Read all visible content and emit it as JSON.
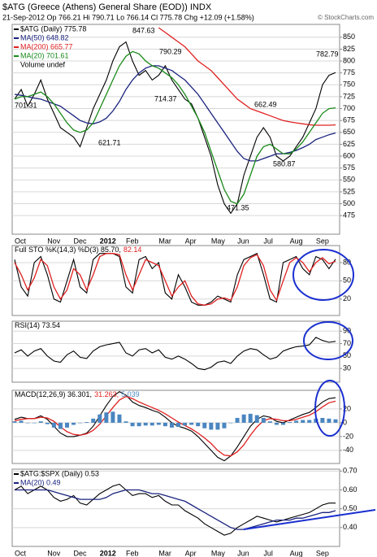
{
  "header": {
    "title": "$ATG (Greece (Athens) General Share (EOD)) INDX",
    "quote": "21-Sep-2012   Op 766.21   Hi 790.71   Lo 766.14   Cl 775.78   Chg +12.09 (+1.58%)",
    "copyright": "© StockCharts.com"
  },
  "chart_data": [
    {
      "type": "line",
      "grid": true,
      "ylim": [
        436,
        877
      ],
      "yticks": [
        475,
        500,
        525,
        550,
        575,
        600,
        625,
        650,
        675,
        700,
        725,
        750,
        775,
        800,
        825,
        850
      ],
      "categories": [
        "Oct",
        null,
        null,
        null,
        null,
        "Nov",
        null,
        null,
        null,
        "Dec",
        null,
        null,
        null,
        "2012",
        null,
        null,
        null,
        "Feb",
        null,
        null,
        null,
        null,
        "Mar",
        null,
        null,
        null,
        "Apr",
        null,
        null,
        null,
        "May",
        null,
        null,
        null,
        "Jun",
        null,
        null,
        null,
        "Jul",
        null,
        null,
        null,
        "Aug",
        null,
        null,
        null,
        "Sep",
        null,
        null,
        null
      ],
      "series": [
        {
          "name": "$ATG (Daily) 775.78",
          "color": "#000000",
          "values": [
            720,
            740,
            705,
            730,
            760,
            720,
            690,
            660,
            650,
            640,
            620,
            660,
            700,
            730,
            760,
            800,
            830,
            840,
            800,
            770,
            780,
            760,
            770,
            790,
            760,
            740,
            720,
            710,
            680,
            640,
            600,
            540,
            500,
            480,
            500,
            560,
            600,
            640,
            660,
            640,
            600,
            590,
            600,
            620,
            640,
            670,
            700,
            750,
            770,
            775.78
          ]
        },
        {
          "name": "MA(50) 648.82",
          "color": "#1a237e",
          "values": [
            730,
            728,
            725,
            722,
            720,
            715,
            710,
            705,
            695,
            685,
            675,
            670,
            668,
            672,
            680,
            695,
            715,
            740,
            760,
            775,
            785,
            790,
            790,
            785,
            780,
            770,
            760,
            745,
            730,
            710,
            690,
            670,
            650,
            630,
            610,
            595,
            590,
            590,
            595,
            600,
            605,
            605,
            608,
            612,
            618,
            625,
            635,
            640,
            645,
            648.82
          ]
        },
        {
          "name": "MA(200) 665.77",
          "color": "#e02020",
          "values": [
            null,
            null,
            null,
            null,
            null,
            null,
            null,
            null,
            null,
            null,
            null,
            null,
            null,
            null,
            null,
            null,
            null,
            null,
            null,
            null,
            null,
            null,
            870,
            860,
            850,
            840,
            830,
            815,
            800,
            790,
            780,
            765,
            750,
            735,
            720,
            710,
            700,
            695,
            690,
            685,
            680,
            675,
            672,
            670,
            668,
            666,
            665,
            665,
            665,
            665.77
          ]
        },
        {
          "name": "MA(20) 701.61",
          "color": "#1a8a1a",
          "values": [
            720,
            725,
            725,
            730,
            735,
            725,
            710,
            690,
            670,
            655,
            650,
            655,
            670,
            700,
            730,
            760,
            790,
            810,
            820,
            815,
            800,
            790,
            785,
            775,
            765,
            750,
            730,
            705,
            680,
            650,
            610,
            570,
            530,
            505,
            500,
            520,
            560,
            600,
            620,
            625,
            615,
            605,
            605,
            615,
            630,
            650,
            670,
            690,
            700,
            701.61
          ]
        }
      ],
      "volume_label": "Volume undef",
      "annotations": [
        847.63,
        790.29,
        714.37,
        701.31,
        621.71,
        471.35,
        662.49,
        580.87,
        782.79
      ]
    },
    {
      "type": "line",
      "grid": true,
      "ylim": [
        -7,
        108
      ],
      "yticks": [
        20,
        50,
        80
      ],
      "series": [
        {
          "name": "Full STO %K(14,3) %D(3) 85.70,",
          "color": "#000000",
          "values": [
            85,
            40,
            25,
            80,
            90,
            60,
            20,
            15,
            50,
            85,
            40,
            30,
            85,
            95,
            95,
            95,
            90,
            40,
            30,
            85,
            90,
            70,
            80,
            30,
            20,
            60,
            40,
            15,
            10,
            10,
            15,
            25,
            20,
            15,
            60,
            85,
            90,
            95,
            60,
            20,
            15,
            80,
            85,
            90,
            70,
            60,
            90,
            85,
            70,
            85.7
          ]
        },
        {
          "name": "82.14",
          "color": "#e02020",
          "values": [
            80,
            60,
            35,
            55,
            85,
            75,
            40,
            20,
            35,
            70,
            60,
            35,
            60,
            90,
            95,
            95,
            93,
            60,
            35,
            60,
            85,
            80,
            75,
            50,
            25,
            40,
            50,
            25,
            12,
            10,
            12,
            20,
            22,
            18,
            40,
            75,
            88,
            93,
            75,
            35,
            18,
            50,
            80,
            88,
            80,
            65,
            80,
            88,
            78,
            82.14
          ]
        }
      ]
    },
    {
      "type": "line",
      "grid": true,
      "ylim": [
        8,
        106
      ],
      "yticks": [
        30,
        50,
        70,
        90
      ],
      "series": [
        {
          "name": "RSI(14) 73.54",
          "color": "#000000",
          "values": [
            55,
            60,
            50,
            58,
            62,
            50,
            42,
            40,
            52,
            58,
            48,
            46,
            58,
            65,
            68,
            70,
            72,
            55,
            50,
            60,
            62,
            55,
            60,
            48,
            45,
            50,
            45,
            38,
            30,
            28,
            32,
            40,
            42,
            38,
            50,
            58,
            62,
            60,
            52,
            45,
            48,
            58,
            62,
            65,
            66,
            68,
            80,
            75,
            72,
            73.54
          ]
        }
      ]
    },
    {
      "type": "line",
      "grid": true,
      "ylim": [
        -59,
        47
      ],
      "yticks": [
        -40,
        -20,
        0,
        20
      ],
      "series": [
        {
          "name": "MACD(12,26,9) 36.301,",
          "color": "#000000",
          "values": [
            5,
            8,
            6,
            6,
            10,
            5,
            -5,
            -15,
            -20,
            -20,
            -18,
            -15,
            -5,
            10,
            25,
            38,
            45,
            40,
            30,
            25,
            22,
            18,
            15,
            8,
            0,
            -5,
            -8,
            -12,
            -20,
            -30,
            -40,
            -50,
            -55,
            -48,
            -35,
            -20,
            -5,
            5,
            10,
            8,
            2,
            0,
            4,
            8,
            12,
            15,
            22,
            30,
            35,
            36.301
          ]
        },
        {
          "name": "31.263,",
          "color": "#e02020",
          "values": [
            3,
            5,
            6,
            6,
            8,
            7,
            2,
            -6,
            -13,
            -17,
            -18,
            -16,
            -11,
            -2,
            10,
            22,
            33,
            38,
            35,
            30,
            26,
            22,
            18,
            13,
            7,
            1,
            -4,
            -9,
            -15,
            -22,
            -30,
            -40,
            -47,
            -48,
            -42,
            -32,
            -18,
            -6,
            3,
            6,
            5,
            3,
            3,
            5,
            8,
            11,
            16,
            23,
            29,
            31.263
          ]
        },
        {
          "name": "5.039",
          "color": "#4a86c0",
          "type": "bar",
          "values": [
            2,
            3,
            0,
            0,
            2,
            -2,
            -7,
            -9,
            -7,
            -3,
            0,
            1,
            6,
            12,
            15,
            16,
            12,
            2,
            -5,
            -5,
            -4,
            -4,
            -3,
            -5,
            -7,
            -6,
            -4,
            -3,
            -5,
            -8,
            -10,
            -10,
            -8,
            0,
            7,
            12,
            13,
            11,
            7,
            2,
            -3,
            -3,
            1,
            3,
            4,
            4,
            6,
            7,
            6,
            5.039
          ]
        }
      ]
    },
    {
      "type": "line",
      "grid": true,
      "ylim": [
        0.3,
        0.71
      ],
      "yticks": [
        {
          "value": 0.4,
          "label": "0.40"
        },
        {
          "value": 0.5,
          "label": "0.50"
        },
        {
          "value": 0.6,
          "label": "0.60"
        },
        {
          "value": 0.7,
          "label": "0.70"
        }
      ],
      "categories": [
        "Oct",
        null,
        null,
        null,
        null,
        "Nov",
        null,
        null,
        null,
        "Dec",
        null,
        null,
        null,
        "2012",
        null,
        null,
        null,
        "Feb",
        null,
        null,
        null,
        null,
        "Mar",
        null,
        null,
        null,
        "Apr",
        null,
        null,
        null,
        "May",
        null,
        null,
        null,
        "Jun",
        null,
        null,
        null,
        "Jul",
        null,
        null,
        null,
        "Aug",
        null,
        null,
        null,
        "Sep",
        null,
        null,
        null
      ],
      "series": [
        {
          "name": "$ATG:$SPX (Daily) 0.53",
          "color": "#000000",
          "values": [
            0.6,
            0.62,
            0.58,
            0.6,
            0.62,
            0.6,
            0.56,
            0.54,
            0.55,
            0.57,
            0.53,
            0.52,
            0.55,
            0.58,
            0.6,
            0.62,
            0.63,
            0.6,
            0.57,
            0.58,
            0.58,
            0.56,
            0.57,
            0.54,
            0.52,
            0.52,
            0.49,
            0.47,
            0.45,
            0.42,
            0.4,
            0.38,
            0.36,
            0.37,
            0.4,
            0.42,
            0.44,
            0.46,
            0.45,
            0.44,
            0.43,
            0.44,
            0.45,
            0.46,
            0.47,
            0.48,
            0.5,
            0.52,
            0.53,
            0.53
          ]
        },
        {
          "name": "MA(20) 0.49",
          "color": "#1a237e",
          "values": [
            0.6,
            0.6,
            0.6,
            0.6,
            0.6,
            0.6,
            0.59,
            0.58,
            0.57,
            0.56,
            0.55,
            0.55,
            0.55,
            0.55,
            0.56,
            0.58,
            0.59,
            0.6,
            0.6,
            0.6,
            0.59,
            0.58,
            0.58,
            0.57,
            0.56,
            0.55,
            0.54,
            0.52,
            0.5,
            0.48,
            0.46,
            0.44,
            0.42,
            0.4,
            0.39,
            0.39,
            0.4,
            0.41,
            0.42,
            0.43,
            0.44,
            0.44,
            0.44,
            0.45,
            0.45,
            0.46,
            0.47,
            0.48,
            0.48,
            0.49
          ]
        }
      ]
    }
  ]
}
